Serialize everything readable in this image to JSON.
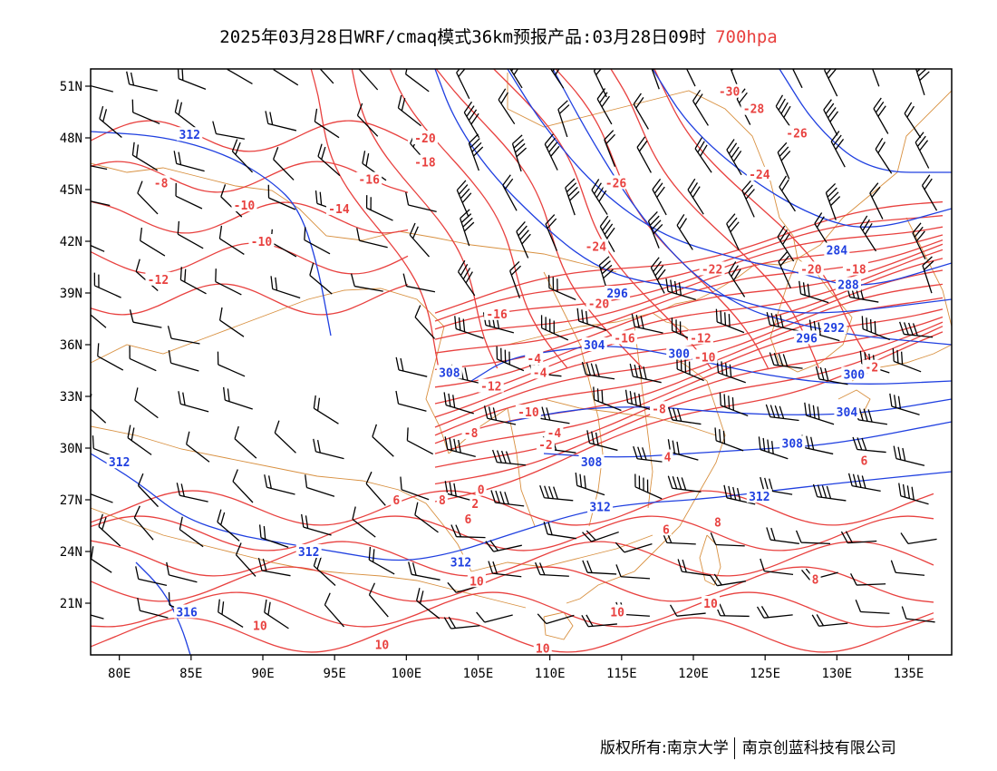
{
  "header": {
    "title": "2025年03月28日WRF/cmaq模式36km预报产品:03月28日09时",
    "level": "700hpa",
    "level_color": "#e8413f"
  },
  "map": {
    "projection": "lat-lon",
    "lon_range": [
      78,
      138
    ],
    "lat_range": [
      18,
      52
    ],
    "lat_labels": [
      "51N",
      "48N",
      "45N",
      "42N",
      "39N",
      "36N",
      "33N",
      "30N",
      "27N",
      "24N",
      "21N"
    ],
    "lon_labels": [
      "80E",
      "85E",
      "90E",
      "95E",
      "100E",
      "105E",
      "110E",
      "115E",
      "120E",
      "125E",
      "130E",
      "135E"
    ],
    "colors": {
      "temperature": "#e8413f",
      "geopotential": "#2040e0",
      "boundary": "#d89040",
      "wind": "#000000"
    },
    "temperature_labels": [
      {
        "text": "-30",
        "lon": 122.5,
        "lat": 50.7
      },
      {
        "text": "-28",
        "lon": 124.2,
        "lat": 49.7
      },
      {
        "text": "-26",
        "lon": 127.2,
        "lat": 48.3
      },
      {
        "text": "-24",
        "lon": 124.6,
        "lat": 45.9
      },
      {
        "text": "-26",
        "lon": 114.6,
        "lat": 45.4
      },
      {
        "text": "-24",
        "lon": 113.2,
        "lat": 41.7
      },
      {
        "text": "-22",
        "lon": 121.3,
        "lat": 40.4
      },
      {
        "text": "-20",
        "lon": 128.2,
        "lat": 40.4
      },
      {
        "text": "-18",
        "lon": 131.3,
        "lat": 40.4
      },
      {
        "text": "-20",
        "lon": 101.3,
        "lat": 48.0
      },
      {
        "text": "-18",
        "lon": 101.3,
        "lat": 46.6
      },
      {
        "text": "-16",
        "lon": 97.4,
        "lat": 45.6
      },
      {
        "text": "-14",
        "lon": 95.3,
        "lat": 43.9
      },
      {
        "text": "-8",
        "lon": 82.9,
        "lat": 45.4
      },
      {
        "text": "-10",
        "lon": 88.7,
        "lat": 44.1
      },
      {
        "text": "-10",
        "lon": 89.9,
        "lat": 42.0
      },
      {
        "text": "-12",
        "lon": 82.7,
        "lat": 39.8
      },
      {
        "text": "-16",
        "lon": 106.3,
        "lat": 37.8
      },
      {
        "text": "-20",
        "lon": 113.4,
        "lat": 38.4
      },
      {
        "text": "-16",
        "lon": 115.2,
        "lat": 36.4
      },
      {
        "text": "-12",
        "lon": 120.5,
        "lat": 36.4
      },
      {
        "text": "-10",
        "lon": 120.8,
        "lat": 35.3
      },
      {
        "text": "-4",
        "lon": 108.9,
        "lat": 35.2
      },
      {
        "text": "-4",
        "lon": 109.3,
        "lat": 34.4
      },
      {
        "text": "-12",
        "lon": 105.9,
        "lat": 33.6
      },
      {
        "text": "-10",
        "lon": 108.5,
        "lat": 32.1
      },
      {
        "text": "-8",
        "lon": 117.6,
        "lat": 32.3
      },
      {
        "text": "-8",
        "lon": 104.5,
        "lat": 30.9
      },
      {
        "text": "-4",
        "lon": 110.3,
        "lat": 30.9
      },
      {
        "text": "-2",
        "lon": 109.7,
        "lat": 30.2
      },
      {
        "text": "4",
        "lon": 118.2,
        "lat": 29.5
      },
      {
        "text": "6",
        "lon": 131.9,
        "lat": 29.3
      },
      {
        "text": "-2",
        "lon": 132.4,
        "lat": 34.7
      },
      {
        "text": "0",
        "lon": 105.2,
        "lat": 27.6
      },
      {
        "text": "2",
        "lon": 104.8,
        "lat": 26.8
      },
      {
        "text": "6",
        "lon": 104.3,
        "lat": 25.9
      },
      {
        "text": "6",
        "lon": 99.3,
        "lat": 27.0
      },
      {
        "text": "8",
        "lon": 102.5,
        "lat": 27.0
      },
      {
        "text": "8",
        "lon": 121.7,
        "lat": 25.7
      },
      {
        "text": "6",
        "lon": 118.1,
        "lat": 25.3
      },
      {
        "text": "8",
        "lon": 128.5,
        "lat": 22.4
      },
      {
        "text": "10",
        "lon": 104.9,
        "lat": 22.3
      },
      {
        "text": "10",
        "lon": 121.2,
        "lat": 21.0
      },
      {
        "text": "10",
        "lon": 114.7,
        "lat": 20.5
      },
      {
        "text": "10",
        "lon": 89.8,
        "lat": 19.7
      },
      {
        "text": "10",
        "lon": 98.3,
        "lat": 18.6
      },
      {
        "text": "10",
        "lon": 109.5,
        "lat": 18.4
      }
    ],
    "height_labels": [
      {
        "text": "312",
        "lon": 84.9,
        "lat": 48.2
      },
      {
        "text": "284",
        "lon": 130.0,
        "lat": 41.5
      },
      {
        "text": "288",
        "lon": 130.8,
        "lat": 39.5
      },
      {
        "text": "292",
        "lon": 129.8,
        "lat": 37.0
      },
      {
        "text": "296",
        "lon": 114.7,
        "lat": 39.0
      },
      {
        "text": "296",
        "lon": 127.9,
        "lat": 36.4
      },
      {
        "text": "300",
        "lon": 119.0,
        "lat": 35.5
      },
      {
        "text": "300",
        "lon": 131.2,
        "lat": 34.3
      },
      {
        "text": "304",
        "lon": 113.1,
        "lat": 36.0
      },
      {
        "text": "304",
        "lon": 130.7,
        "lat": 32.1
      },
      {
        "text": "308",
        "lon": 103.0,
        "lat": 34.4
      },
      {
        "text": "308",
        "lon": 112.9,
        "lat": 29.2
      },
      {
        "text": "308",
        "lon": 126.9,
        "lat": 30.3
      },
      {
        "text": "312",
        "lon": 80.0,
        "lat": 29.2
      },
      {
        "text": "312",
        "lon": 113.5,
        "lat": 26.6
      },
      {
        "text": "312",
        "lon": 124.6,
        "lat": 27.2
      },
      {
        "text": "312",
        "lon": 93.2,
        "lat": 24.0
      },
      {
        "text": "312",
        "lon": 103.8,
        "lat": 23.4
      },
      {
        "text": "316",
        "lon": 84.7,
        "lat": 20.5
      }
    ]
  },
  "footer": {
    "left": "版权所有:南京大学",
    "right": "南京创蓝科技有限公司"
  }
}
